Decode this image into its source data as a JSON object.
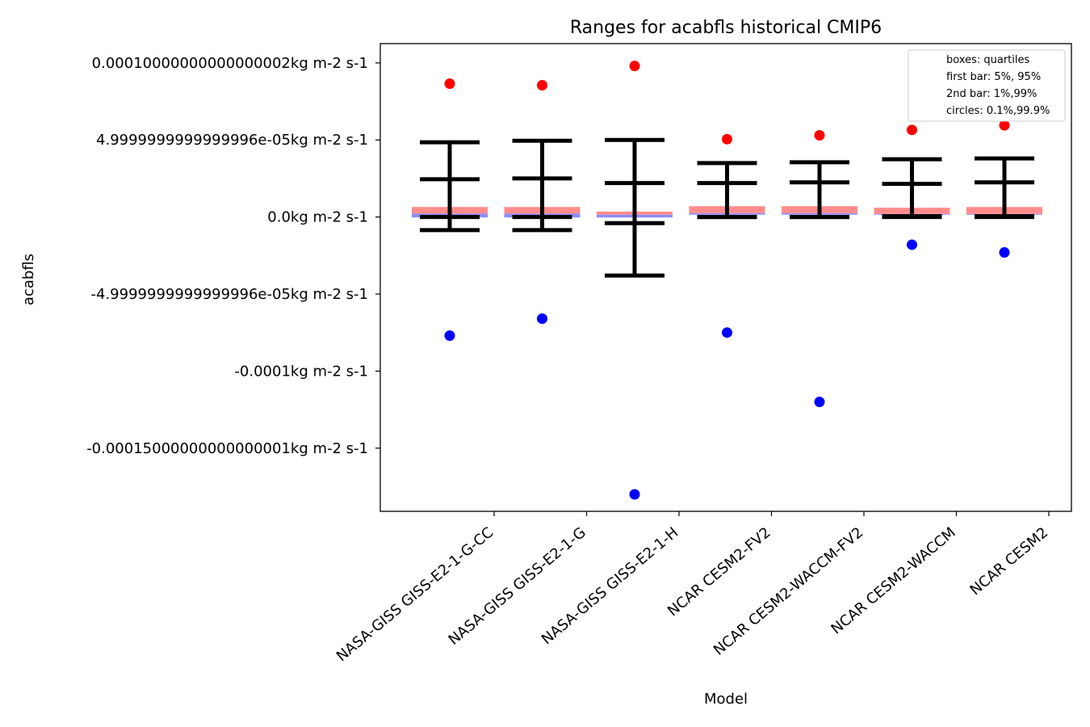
{
  "chart_data": {
    "type": "box",
    "title": "Ranges for acabfls historical CMIP6",
    "xlabel": "Model",
    "ylabel": "acabfls",
    "ylim": [
      -0.000191,
      0.0001125
    ],
    "y_ticks": [
      {
        "value": 0.0001,
        "label": "0.00010000000000000002kg m-2 s-1"
      },
      {
        "value": 5e-05,
        "label": "4.9999999999999996e-05kg m-2 s-1"
      },
      {
        "value": 0.0,
        "label": "0.0kg m-2 s-1"
      },
      {
        "value": -5e-05,
        "label": "-4.9999999999999996e-05kg m-2 s-1"
      },
      {
        "value": -0.0001,
        "label": "-0.0001kg m-2 s-1"
      },
      {
        "value": -0.00015,
        "label": "-0.00015000000000000001kg m-2 s-1"
      }
    ],
    "legend": {
      "placement": "top-right",
      "entries": [
        "boxes: quartiles",
        "first bar: 5%, 95%",
        "2nd bar: 1%,99%",
        "circles: 0.1%,99.9%"
      ]
    },
    "categories": [
      "NASA-GISS GISS-E2-1-G-CC",
      "NASA-GISS GISS-E2-1-G",
      "NASA-GISS GISS-E2-1-H",
      "NCAR CESM2-FV2",
      "NCAR CESM2-WACCM-FV2",
      "NCAR CESM2-WACCM",
      "NCAR CESM2"
    ],
    "series": [
      {
        "p0_1": -7.7e-05,
        "p1": -8.5e-06,
        "p5": 0.0,
        "q1": -3e-07,
        "median": 2.2e-06,
        "q3": 6.5e-06,
        "p95": 2.45e-05,
        "p99": 4.85e-05,
        "p99_9": 8.65e-05
      },
      {
        "p0_1": -6.6e-05,
        "p1": -8.5e-06,
        "p5": 0.0,
        "q1": -3e-07,
        "median": 2.2e-06,
        "q3": 6.5e-06,
        "p95": 2.5e-05,
        "p99": 4.95e-05,
        "p99_9": 8.55e-05
      },
      {
        "p0_1": -0.00018,
        "p1": -3.8e-05,
        "p5": -4e-06,
        "q1": -3e-07,
        "median": 1.5e-06,
        "q3": 3.5e-06,
        "p95": 2.2e-05,
        "p99": 5e-05,
        "p99_9": 9.8e-05
      },
      {
        "p0_1": -7.5e-05,
        "p1": 0.0,
        "p5": 0.0,
        "q1": 1.5e-06,
        "median": 2.5e-06,
        "q3": 7e-06,
        "p95": 2.2e-05,
        "p99": 3.5e-05,
        "p99_9": 5.05e-05
      },
      {
        "p0_1": -0.00012,
        "p1": 0.0,
        "p5": 0.0,
        "q1": 1.5e-06,
        "median": 2.5e-06,
        "q3": 7e-06,
        "p95": 2.25e-05,
        "p99": 3.55e-05,
        "p99_9": 5.3e-05
      },
      {
        "p0_1": -1.8e-05,
        "p1": 0.0,
        "p5": 5e-07,
        "q1": 1.5e-06,
        "median": 2e-06,
        "q3": 6e-06,
        "p95": 2.15e-05,
        "p99": 3.75e-05,
        "p99_9": 5.65e-05
      },
      {
        "p0_1": -2.3e-05,
        "p1": 0.0,
        "p5": 5e-07,
        "q1": 1.5e-06,
        "median": 2e-06,
        "q3": 6.5e-06,
        "p95": 2.25e-05,
        "p99": 3.8e-05,
        "p99_9": 5.95e-05
      }
    ],
    "colors": {
      "upper_box": "#ff8c8c",
      "lower_box": "#8c8cff",
      "whiskers": "#000000",
      "high_circle": "#ff0000",
      "low_circle": "#0000ff"
    }
  }
}
